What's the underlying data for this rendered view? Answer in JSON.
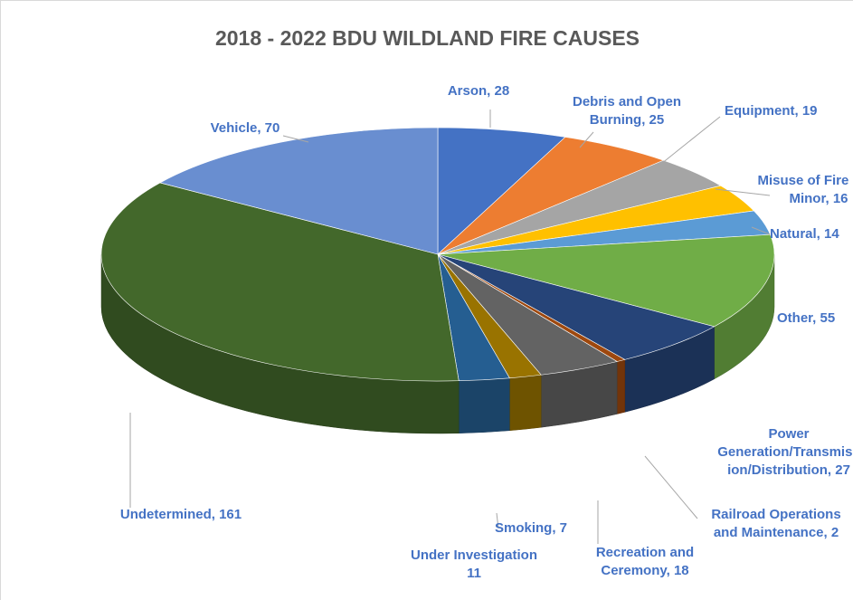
{
  "chart_data": {
    "type": "pie",
    "title": "2018 - 2022 BDU WILDLAND FIRE CAUSES",
    "three_d": true,
    "slices": [
      {
        "label": "Arson",
        "value": 28,
        "display": [
          "Arson, 28"
        ],
        "color": "#4472c4"
      },
      {
        "label": "Debris and Open Burning",
        "value": 25,
        "display": [
          "Debris and Open",
          "Burning, 25"
        ],
        "color": "#ed7d31"
      },
      {
        "label": "Equipment",
        "value": 19,
        "display": [
          "Equipment, 19"
        ],
        "color": "#a5a5a5"
      },
      {
        "label": "Misuse of Fire by a Minor",
        "value": 16,
        "display": [
          "Misuse of Fire by a",
          "Minor, 16"
        ],
        "color": "#ffc000"
      },
      {
        "label": "Natural",
        "value": 14,
        "display": [
          "Natural, 14"
        ],
        "color": "#5b9bd5"
      },
      {
        "label": "Other",
        "value": 55,
        "display": [
          "Other, 55"
        ],
        "color": "#70ad47"
      },
      {
        "label": "Power Generation/Transmission/Distribution",
        "value": 27,
        "display": [
          "Power",
          "Generation/Transmiss",
          "ion/Distribution, 27"
        ],
        "color": "#264478"
      },
      {
        "label": "Railroad Operations and Maintenance",
        "value": 2,
        "display": [
          "Railroad Operations",
          "and Maintenance, 2"
        ],
        "color": "#9e480e"
      },
      {
        "label": "Recreation and Ceremony",
        "value": 18,
        "display": [
          "Recreation and",
          "Ceremony, 18"
        ],
        "color": "#636363"
      },
      {
        "label": "Smoking",
        "value": 7,
        "display": [
          "Smoking, 7"
        ],
        "color": "#997300"
      },
      {
        "label": "Under Investigation",
        "value": 11,
        "display": [
          "Under Investigation",
          "11"
        ],
        "color": "#255e91"
      },
      {
        "label": "Undetermined",
        "value": 161,
        "display": [
          "Undetermined, 161"
        ],
        "color": "#43682b"
      },
      {
        "label": "Vehicle",
        "value": 70,
        "display": [
          "Vehicle, 70"
        ],
        "color": "#698ed0"
      }
    ],
    "label_color": "#4472c4",
    "leader_line_color": "#a6a6a6",
    "legend": "none"
  }
}
